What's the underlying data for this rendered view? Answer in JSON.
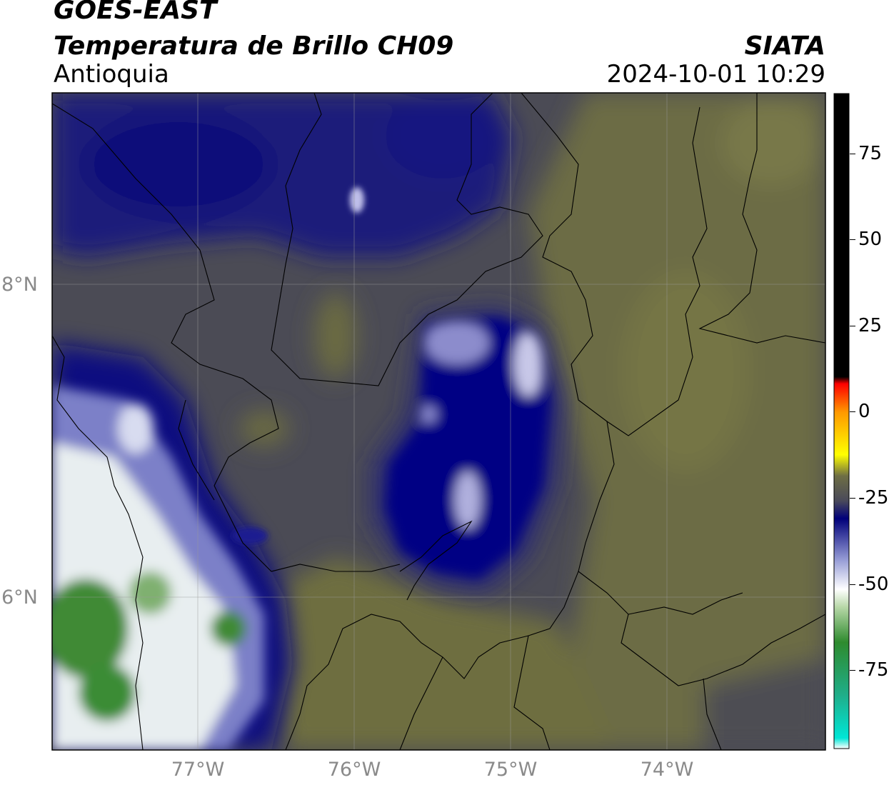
{
  "header": {
    "satellite": "GOES-EAST",
    "product": "Temperatura de Brillo CH09",
    "region": "Antioquia",
    "agency": "SIATA",
    "datetime": "2024-10-01 10:29"
  },
  "map": {
    "lat_ticks": [
      "8°N",
      "6°N"
    ],
    "lon_ticks": [
      "77°W",
      "76°W",
      "75°W",
      "74°W"
    ]
  },
  "colorbar": {
    "ticks": [
      "75",
      "50",
      "25",
      "0",
      "-25",
      "-50",
      "-75"
    ],
    "range": [
      -95,
      90
    ],
    "stops": [
      {
        "value": -95,
        "color": "#ffffff"
      },
      {
        "value": -92,
        "color": "#00e6d6"
      },
      {
        "value": -80,
        "color": "#1fae8a"
      },
      {
        "value": -65,
        "color": "#2e8b2e"
      },
      {
        "value": -55,
        "color": "#b8d8a8"
      },
      {
        "value": -50,
        "color": "#ffffff"
      },
      {
        "value": -42,
        "color": "#9aa0d8"
      },
      {
        "value": -30,
        "color": "#00007a"
      },
      {
        "value": -25,
        "color": "#4a4a5a"
      },
      {
        "value": -18,
        "color": "#6e6e44"
      },
      {
        "value": -12,
        "color": "#ffff00"
      },
      {
        "value": 0,
        "color": "#ff9900"
      },
      {
        "value": 8,
        "color": "#ff0000"
      },
      {
        "value": 10,
        "color": "#000000"
      },
      {
        "value": 90,
        "color": "#000000"
      }
    ]
  },
  "colors": {
    "deep_blue": "#000080",
    "olive": "#6f6f40",
    "dark_gray": "#4a4a55",
    "green": "#3c8c32"
  }
}
